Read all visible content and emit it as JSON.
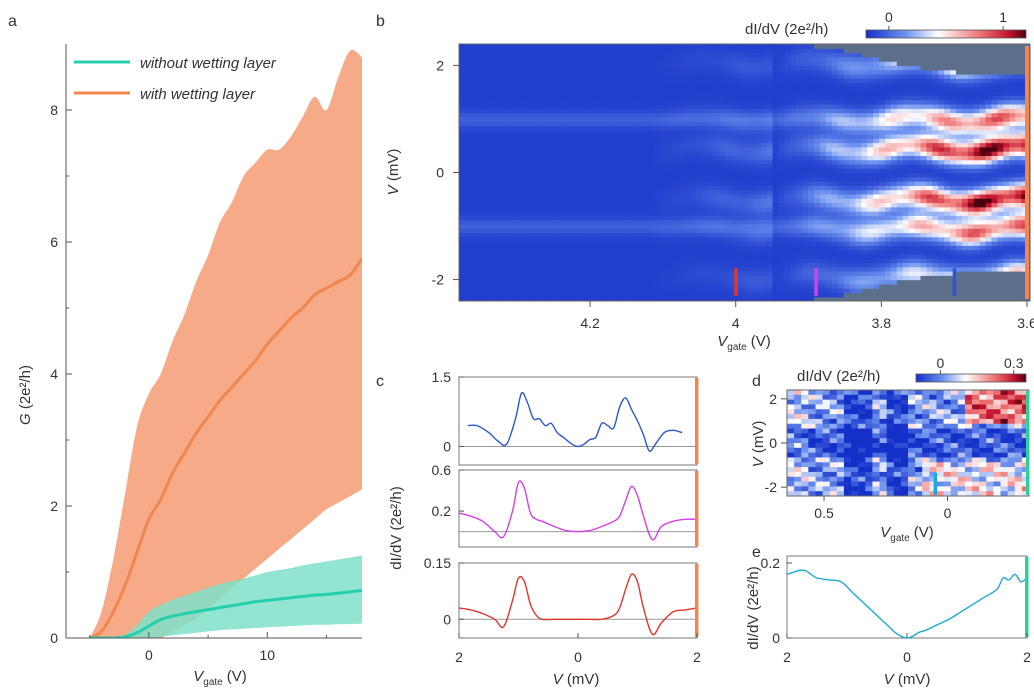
{
  "colors": {
    "orange": "#f1864f",
    "orange_fill": "#f7aa87",
    "teal": "#25cfae",
    "teal_fill": "#7fe0c9",
    "blue_trace": "#2a57d6",
    "magenta_trace": "#d340e3",
    "red_trace": "#e0352c",
    "cyan_trace": "#1aa9d8",
    "green_bar": "#2dd098",
    "gray": "#5d6f8a",
    "cmap_low": "#2039d6",
    "cmap_mid": "#ffffff",
    "cmap_high": "#5c0010"
  },
  "panels": {
    "a": {
      "label": "a",
      "ylabel_var": "G",
      "ylabel_unit": "(2e²/h)",
      "xlabel_var": "V",
      "xlabel_sub": "gate",
      "xlabel_unit": "(V)",
      "legend": [
        "without wetting layer",
        "with wetting layer"
      ]
    },
    "b": {
      "label": "b",
      "cbar_title": "dI/dV (2e²/h)",
      "ylabel_var": "V",
      "ylabel_unit": "(mV)",
      "xlabel_var": "V",
      "xlabel_sub": "gate",
      "xlabel_unit": "(V)"
    },
    "c": {
      "label": "c",
      "ylabel": "dI/dV (2e²/h)",
      "xlabel_var": "V",
      "xlabel_unit": "(mV)"
    },
    "d": {
      "label": "d",
      "cbar_title": "dI/dV (2e²/h)",
      "ylabel_var": "V",
      "ylabel_unit": "(mV)",
      "xlabel_var": "V",
      "xlabel_sub": "gate",
      "xlabel_unit": "(V)"
    },
    "e": {
      "label": "e",
      "ylabel": "dI/dV (2e²/h)",
      "xlabel_var": "V",
      "xlabel_unit": "(mV)"
    }
  },
  "chart_data": [
    {
      "panel": "a",
      "type": "area",
      "xlabel": "Vgate (V)",
      "ylabel": "G (2e²/h)",
      "xlim": [
        -7,
        18
      ],
      "ylim": [
        0,
        9
      ],
      "xticks": [
        0,
        10
      ],
      "yticks": [
        0,
        2,
        4,
        6,
        8
      ],
      "legend_position": "top-left",
      "series": [
        {
          "name": "with wetting layer",
          "x": [
            -5,
            -4,
            -3,
            -2,
            -1,
            0,
            1,
            2,
            3,
            4,
            5,
            6,
            7,
            8,
            9,
            10,
            11,
            12,
            13,
            14,
            15,
            16,
            17,
            18
          ],
          "mean": [
            0,
            0.1,
            0.4,
            0.8,
            1.3,
            1.8,
            2.1,
            2.5,
            2.8,
            3.1,
            3.35,
            3.6,
            3.8,
            4.0,
            4.2,
            4.45,
            4.65,
            4.85,
            5.0,
            5.2,
            5.3,
            5.4,
            5.5,
            5.75
          ],
          "upper": [
            0,
            0.4,
            1.2,
            2.2,
            3.2,
            3.7,
            4.0,
            4.5,
            4.9,
            5.4,
            5.8,
            6.3,
            6.6,
            7.0,
            7.2,
            7.4,
            7.4,
            7.6,
            7.9,
            8.2,
            8.0,
            8.5,
            8.9,
            8.8
          ],
          "lower": [
            0,
            0,
            0,
            0,
            0,
            0,
            0,
            0.1,
            0.2,
            0.3,
            0.45,
            0.6,
            0.75,
            0.9,
            1.05,
            1.2,
            1.35,
            1.5,
            1.65,
            1.8,
            1.95,
            2.05,
            2.15,
            2.25
          ]
        },
        {
          "name": "without wetting layer",
          "x": [
            -5,
            -4,
            -3,
            -2,
            -1,
            0,
            1,
            2,
            3,
            4,
            5,
            6,
            7,
            8,
            9,
            10,
            11,
            12,
            13,
            14,
            15,
            16,
            17,
            18
          ],
          "mean": [
            0,
            0,
            0,
            0.02,
            0.08,
            0.18,
            0.28,
            0.33,
            0.37,
            0.4,
            0.43,
            0.46,
            0.49,
            0.52,
            0.55,
            0.57,
            0.59,
            0.61,
            0.63,
            0.65,
            0.66,
            0.68,
            0.7,
            0.72
          ],
          "upper": [
            0,
            0,
            0,
            0.05,
            0.2,
            0.4,
            0.5,
            0.58,
            0.64,
            0.7,
            0.76,
            0.82,
            0.86,
            0.9,
            0.95,
            1.0,
            1.03,
            1.06,
            1.1,
            1.13,
            1.16,
            1.19,
            1.22,
            1.25
          ],
          "lower": [
            0,
            0,
            0,
            0,
            0,
            0,
            0.02,
            0.04,
            0.06,
            0.08,
            0.1,
            0.12,
            0.13,
            0.14,
            0.15,
            0.16,
            0.17,
            0.18,
            0.19,
            0.2,
            0.2,
            0.21,
            0.21,
            0.22
          ]
        }
      ]
    },
    {
      "panel": "b",
      "type": "heatmap",
      "xlabel": "Vgate (V)",
      "ylabel": "V (mV)",
      "xlim": [
        4.38,
        3.6
      ],
      "ylim": [
        -2.4,
        2.4
      ],
      "xticks": [
        4.2,
        4,
        3.8,
        3.6
      ],
      "xtick_labels": [
        "4.2",
        "4",
        "3.8",
        "3.6"
      ],
      "yticks": [
        -2,
        0,
        2
      ],
      "colorbar": {
        "ticks": [
          0,
          1
        ],
        "range": [
          -0.2,
          1.2
        ]
      },
      "lobe_centers_mV": [
        2.05,
        1.0,
        0.45,
        -0.5,
        -1.05,
        -1.95
      ],
      "gap_edge_gate_V": [
        3.99,
        3.92,
        3.86,
        3.8,
        3.72,
        3.6
      ],
      "gap_edge_mV": [
        2.4,
        2.4,
        2.3,
        2.1,
        1.9,
        1.8
      ],
      "markers": [
        {
          "vgate": 4.0,
          "color": "#e0352c"
        },
        {
          "vgate": 3.89,
          "color": "#d340e3"
        },
        {
          "vgate": 3.7,
          "color": "#2a57d6"
        },
        {
          "vgate": 3.604,
          "color": "#f1864f"
        }
      ]
    },
    {
      "panel": "c",
      "type": "line",
      "xlabel": "V (mV)",
      "ylabel": "dI/dV (2e²/h)",
      "xlim": [
        -2,
        2
      ],
      "xtick_labels": [
        "2",
        "0",
        "2"
      ],
      "subplots": [
        {
          "color": "#2a57d6",
          "ylim": [
            -0.4,
            1.5
          ],
          "yticks": [
            0,
            1.5
          ],
          "x": [
            -1.85,
            -1.7,
            -1.5,
            -1.35,
            -1.2,
            -1.05,
            -0.95,
            -0.85,
            -0.75,
            -0.65,
            -0.55,
            -0.45,
            -0.35,
            -0.25,
            -0.1,
            0,
            0.1,
            0.2,
            0.3,
            0.4,
            0.5,
            0.6,
            0.7,
            0.8,
            0.9,
            1.0,
            1.1,
            1.2,
            1.3,
            1.45,
            1.6,
            1.75
          ],
          "y": [
            0.45,
            0.45,
            0.3,
            0.12,
            0.05,
            0.6,
            1.15,
            0.95,
            0.6,
            0.6,
            0.45,
            0.5,
            0.3,
            0.2,
            0.05,
            0.0,
            0.05,
            0.15,
            0.2,
            0.5,
            0.45,
            0.4,
            0.85,
            1.05,
            0.8,
            0.55,
            0.25,
            -0.1,
            0.05,
            0.3,
            0.35,
            0.3
          ]
        },
        {
          "color": "#d340e3",
          "ylim": [
            -0.15,
            0.6
          ],
          "yticks": [
            0.2,
            0.6
          ],
          "x": [
            -2,
            -1.8,
            -1.6,
            -1.4,
            -1.25,
            -1.1,
            -1.0,
            -0.9,
            -0.8,
            -0.7,
            -0.6,
            -0.4,
            -0.2,
            0,
            0.2,
            0.4,
            0.6,
            0.7,
            0.8,
            0.9,
            1.0,
            1.1,
            1.25,
            1.4,
            1.6,
            1.8,
            2.0
          ],
          "y": [
            0.18,
            0.15,
            0.1,
            0.0,
            -0.05,
            0.2,
            0.48,
            0.42,
            0.18,
            0.12,
            0.1,
            0.05,
            0.01,
            0.0,
            0.01,
            0.05,
            0.1,
            0.15,
            0.3,
            0.44,
            0.35,
            0.15,
            -0.08,
            0.05,
            0.1,
            0.12,
            0.12
          ]
        },
        {
          "color": "#e0352c",
          "ylim": [
            -0.05,
            0.15
          ],
          "yticks": [
            0,
            0.15
          ],
          "x": [
            -2,
            -1.8,
            -1.6,
            -1.4,
            -1.25,
            -1.1,
            -1.0,
            -0.9,
            -0.8,
            -0.7,
            -0.6,
            -0.4,
            -0.2,
            0,
            0.2,
            0.4,
            0.6,
            0.7,
            0.8,
            0.9,
            1.0,
            1.1,
            1.25,
            1.4,
            1.6,
            1.8,
            2.0
          ],
          "y": [
            0.03,
            0.025,
            0.015,
            0.0,
            -0.02,
            0.05,
            0.11,
            0.1,
            0.04,
            0.01,
            0.0,
            0.0,
            0.0,
            0.0,
            0.0,
            0.0,
            0.01,
            0.03,
            0.08,
            0.12,
            0.1,
            0.03,
            -0.04,
            -0.01,
            0.02,
            0.025,
            0.03
          ]
        }
      ]
    },
    {
      "panel": "d",
      "type": "heatmap",
      "xlabel": "Vgate (V)",
      "ylabel": "V (mV)",
      "xlim": [
        0.65,
        -0.33
      ],
      "ylim": [
        -2.4,
        2.4
      ],
      "xticks": [
        0.5,
        0
      ],
      "yticks": [
        -2,
        0,
        2
      ],
      "colorbar": {
        "ticks": [
          0,
          0.3
        ],
        "range": [
          -0.1,
          0.35
        ]
      },
      "markers": [
        {
          "vgate": 0.05,
          "color": "#1aa9d8"
        },
        {
          "vgate": -0.32,
          "color": "#2dd098"
        }
      ]
    },
    {
      "panel": "e",
      "type": "line",
      "xlabel": "V (mV)",
      "ylabel": "dI/dV (2e²/h)",
      "xlim": [
        -2,
        2
      ],
      "ylim": [
        0,
        0.2
      ],
      "xtick_labels": [
        "2",
        "0",
        "2"
      ],
      "yticks": [
        0,
        0.2
      ],
      "series": [
        {
          "color": "#1aa9d8",
          "x": [
            -2,
            -1.9,
            -1.8,
            -1.7,
            -1.6,
            -1.5,
            -1.3,
            -1.1,
            -0.9,
            -0.7,
            -0.5,
            -0.3,
            -0.2,
            -0.1,
            0,
            0.1,
            0.2,
            0.3,
            0.5,
            0.7,
            0.9,
            1.1,
            1.3,
            1.5,
            1.6,
            1.7,
            1.8,
            1.9,
            2.0
          ],
          "y": [
            0.17,
            0.175,
            0.18,
            0.18,
            0.17,
            0.16,
            0.155,
            0.15,
            0.12,
            0.09,
            0.06,
            0.03,
            0.015,
            0.005,
            0.0,
            0.005,
            0.015,
            0.02,
            0.035,
            0.05,
            0.07,
            0.09,
            0.11,
            0.13,
            0.16,
            0.155,
            0.17,
            0.15,
            0.16
          ]
        }
      ]
    }
  ]
}
